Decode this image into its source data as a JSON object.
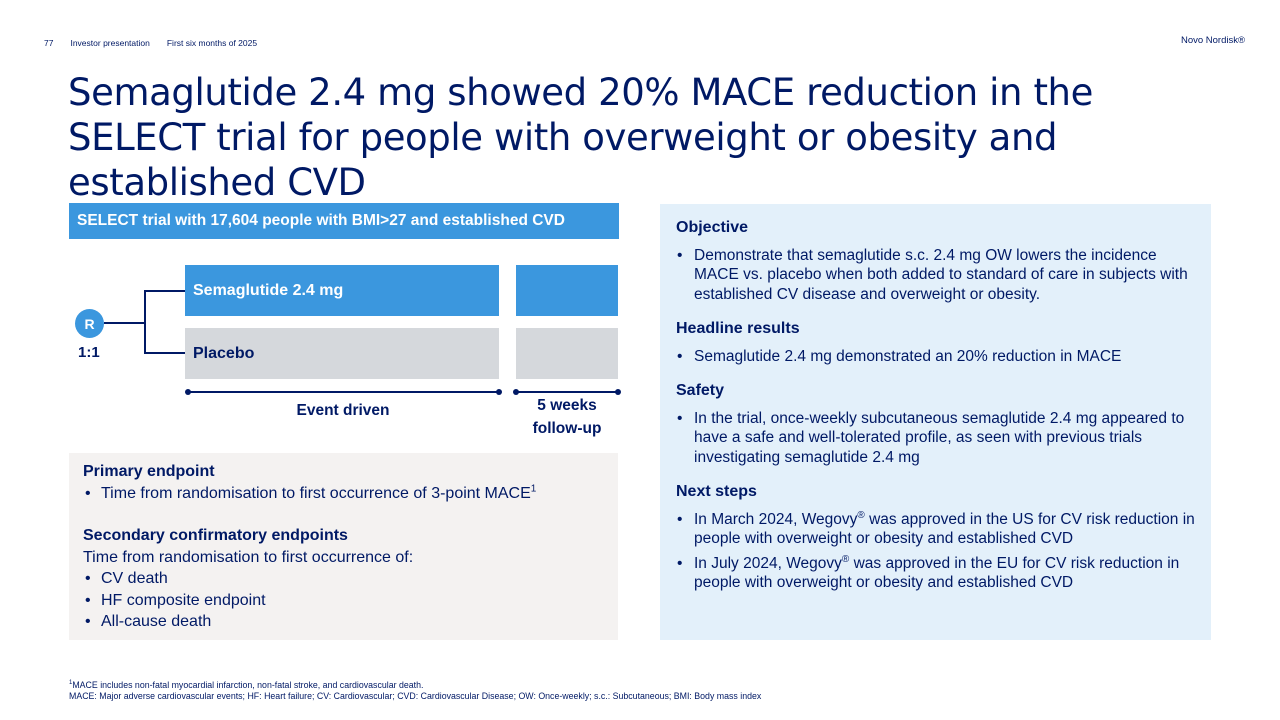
{
  "header": {
    "page_number": "77",
    "doc_type": "Investor presentation",
    "period": "First six months of 2025",
    "brand": "Novo Nordisk®"
  },
  "title": "Semaglutide 2.4 mg showed 20% MACE reduction in the SELECT trial for people with overweight or obesity and established CVD",
  "design": {
    "banner": "SELECT trial with 17,604 people with BMI>27 and established CVD",
    "randomisation_label": "R",
    "ratio": "1:1",
    "arm_treatment": "Semaglutide 2.4 mg",
    "arm_placebo": "Placebo",
    "period_main": "Event driven",
    "period_followup_line1": "5 weeks",
    "period_followup_line2": "follow-up"
  },
  "endpoints": {
    "primary_heading": "Primary endpoint",
    "primary_item": "Time from randomisation to first occurrence of 3-point MACE",
    "primary_sup": "1",
    "secondary_heading": "Secondary confirmatory endpoints",
    "secondary_intro": "Time from randomisation to first occurrence of:",
    "secondary_items": [
      "CV death",
      "HF composite endpoint",
      "All-cause death"
    ]
  },
  "panel": {
    "objective_heading": "Objective",
    "objective_item": "Demonstrate that semaglutide s.c. 2.4 mg OW lowers the incidence MACE vs. placebo when both added to standard of care in subjects with established CV disease and overweight or obesity.",
    "results_heading": "Headline results",
    "results_item": "Semaglutide 2.4 mg demonstrated an 20% reduction in MACE",
    "safety_heading": "Safety",
    "safety_item": "In the trial, once-weekly subcutaneous semaglutide 2.4 mg appeared to have a safe and well-tolerated profile, as seen with previous trials investigating semaglutide 2.4 mg",
    "next_heading": "Next steps",
    "next_item1_pre": "In March 2024, Wegovy",
    "next_item1_post": " was approved in the US for CV risk reduction in people with overweight or obesity and established CVD",
    "next_item2_pre": "In July 2024, Wegovy",
    "next_item2_post": " was approved in the EU for CV risk reduction in people with overweight or obesity and established CVD",
    "registered_mark": "®"
  },
  "footnotes": {
    "line1_sup": "1",
    "line1": "MACE includes non-fatal myocardial infarction, non-fatal stroke, and cardiovascular death.",
    "line2": "MACE: Major adverse cardiovascular events; HF: Heart failure; CV: Cardiovascular; CVD: Cardiovascular Disease; OW: Once-weekly; s.c.: Subcutaneous; BMI: Body mass index"
  }
}
